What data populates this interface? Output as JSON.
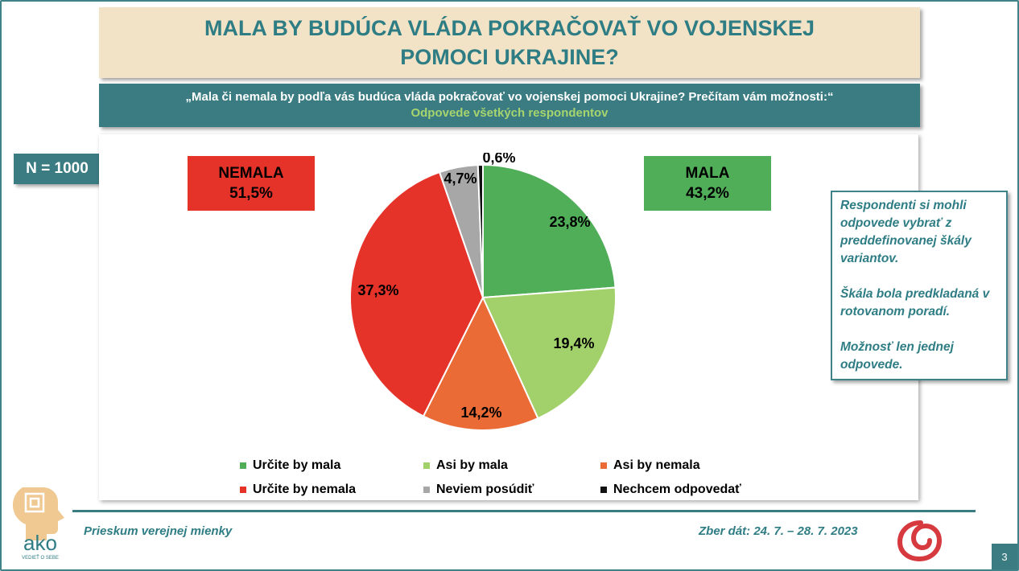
{
  "title": "MALA BY BUDÚCA VLÁDA POKRAČOVAŤ VO VOJENSKEJ POMOCI UKRAJINE?",
  "question": "„Mala či nemala by podľa vás budúca vláda pokračovať vo vojenskej pomoci Ukrajine? Prečítam vám možnosti:“",
  "subtitle": "Odpovede všetkých respondentov",
  "sample": "N = 1000",
  "groups": {
    "nemala": {
      "label": "NEMALA",
      "value": "51,5%"
    },
    "mala": {
      "label": "MALA",
      "value": "43,2%"
    }
  },
  "note": {
    "p1": "Respondenti si mohli odpovede vybrať z preddefinovanej škály variantov.",
    "p2": "Škála bola predkladaná v rotovanom poradí.",
    "p3": "Možnosť len jednej odpovede."
  },
  "chart_data": {
    "type": "pie",
    "slices": [
      {
        "label": "Určite by mala",
        "value": 23.8,
        "display": "23,8%",
        "color": "#50ad58"
      },
      {
        "label": "Asi by mala",
        "value": 19.4,
        "display": "19,4%",
        "color": "#a2d06a"
      },
      {
        "label": "Asi by nemala",
        "value": 14.2,
        "display": "14,2%",
        "color": "#ea6b36"
      },
      {
        "label": "Určite by nemala",
        "value": 37.3,
        "display": "37,3%",
        "color": "#e5332a"
      },
      {
        "label": "Neviem posúdiť",
        "value": 4.7,
        "display": "4,7%",
        "color": "#a7a7a7"
      },
      {
        "label": "Nechcem odpovedať",
        "value": 0.6,
        "display": "0,6%",
        "color": "#111111"
      }
    ],
    "legend_position": "bottom"
  },
  "footer": {
    "left": "Prieskum verejnej mienky",
    "right": "Zber dát: 24. 7. – 28. 7. 2023",
    "logo_text": "ako",
    "logo_tagline": "VEDIEŤ O SEBE"
  },
  "page_number": "3",
  "colors": {
    "teal": "#3a7c82",
    "title_bg": "#f2e3c6",
    "green_text": "#a6d46e"
  }
}
